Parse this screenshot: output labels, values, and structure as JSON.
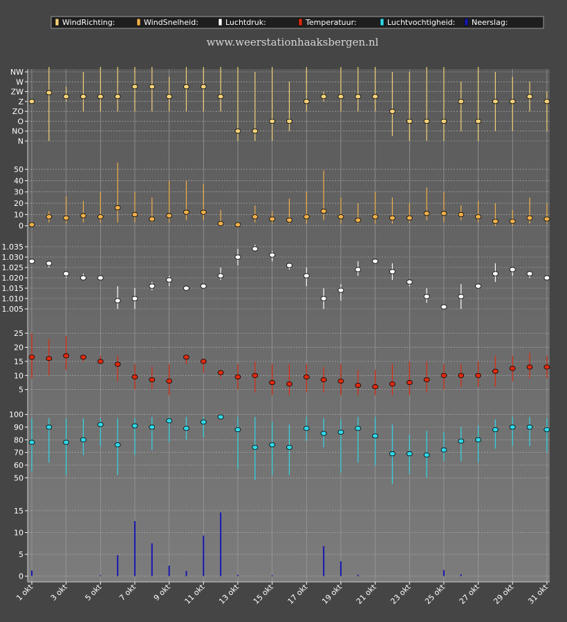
{
  "site_title": "www.weerstationhaaksbergen.nl",
  "colors": {
    "page_bg": "#454545",
    "plot_bg_top": "#5a5a5a",
    "plot_bg_bottom": "#7a7a7a",
    "grid": "#a8a8a8",
    "axis_text": "#ffffff"
  },
  "legend": [
    {
      "label": "WindRichting:",
      "color": "#f5d27a"
    },
    {
      "label": "WindSnelheid:",
      "color": "#f0b04a"
    },
    {
      "label": "Luchtdruk:",
      "color": "#ffffff"
    },
    {
      "label": "Temperatuur:",
      "color": "#e02a10"
    },
    {
      "label": "Luchtvochtigheid:",
      "color": "#30d8e8"
    },
    {
      "label": "Neerslag:",
      "color": "#1818b0"
    }
  ],
  "chart_data": [
    {
      "name": "WindRichting",
      "type": "scatter",
      "color": "#f5d27a",
      "x": [
        "1 okt",
        "2 okt",
        "3 okt",
        "4 okt",
        "5 okt",
        "6 okt",
        "7 okt",
        "8 okt",
        "9 okt",
        "10 okt",
        "11 okt",
        "12 okt",
        "13 okt",
        "14 okt",
        "15 okt",
        "16 okt",
        "17 okt",
        "18 okt",
        "19 okt",
        "20 okt",
        "21 okt",
        "22 okt",
        "23 okt",
        "24 okt",
        "25 okt",
        "26 okt",
        "27 okt",
        "28 okt",
        "29 okt",
        "30 okt",
        "31 okt"
      ],
      "y_ticks": [
        "N",
        "NO",
        "O",
        "ZO",
        "Z",
        "ZW",
        "W",
        "NW"
      ],
      "ylim": [
        0,
        7
      ],
      "values": [
        4.0,
        4.9,
        4.5,
        4.5,
        4.5,
        4.5,
        5.5,
        5.5,
        4.5,
        5.5,
        5.5,
        4.5,
        1.0,
        1.0,
        2.0,
        2.0,
        4.0,
        4.5,
        4.5,
        4.5,
        4.5,
        3.0,
        2.0,
        2.0,
        2.0,
        4.0,
        2.0,
        4.0,
        4.0,
        4.5,
        4.0
      ],
      "min": [
        4.0,
        0.0,
        4.0,
        3.0,
        3.0,
        3.0,
        3.0,
        3.0,
        3.0,
        3.0,
        3.0,
        3.0,
        0.0,
        0.0,
        0.0,
        1.0,
        3.0,
        4.0,
        3.0,
        3.0,
        3.0,
        0.5,
        0.0,
        0.0,
        0.0,
        1.0,
        0.0,
        1.0,
        1.0,
        3.0,
        1.0
      ],
      "max": [
        4.0,
        7.5,
        5.5,
        7.0,
        7.5,
        7.5,
        7.5,
        7.5,
        6.5,
        7.5,
        7.5,
        7.5,
        7.5,
        7.0,
        7.5,
        6.0,
        7.5,
        5.0,
        7.5,
        7.5,
        7.5,
        7.0,
        7.0,
        7.5,
        7.5,
        6.0,
        7.5,
        7.0,
        6.5,
        6.0,
        5.0
      ]
    },
    {
      "name": "WindSnelheid",
      "type": "scatter",
      "color": "#f0b04a",
      "x": [
        "1 okt",
        "2 okt",
        "3 okt",
        "4 okt",
        "5 okt",
        "6 okt",
        "7 okt",
        "8 okt",
        "9 okt",
        "10 okt",
        "11 okt",
        "12 okt",
        "13 okt",
        "14 okt",
        "15 okt",
        "16 okt",
        "17 okt",
        "18 okt",
        "19 okt",
        "20 okt",
        "21 okt",
        "22 okt",
        "23 okt",
        "24 okt",
        "25 okt",
        "26 okt",
        "27 okt",
        "28 okt",
        "29 okt",
        "30 okt",
        "31 okt"
      ],
      "y_ticks": [
        0,
        10,
        20,
        30,
        40,
        50
      ],
      "ylim": [
        -2,
        58
      ],
      "values": [
        1,
        8,
        7,
        9,
        8,
        16,
        10,
        6,
        9,
        12,
        12,
        2,
        1,
        8,
        6,
        5,
        8,
        13,
        8,
        5,
        8,
        7,
        7,
        11,
        11,
        10,
        8,
        4,
        4,
        7,
        6
      ],
      "min": [
        0,
        3,
        2,
        3,
        3,
        3,
        3,
        3,
        3,
        5,
        5,
        0,
        0,
        3,
        2,
        2,
        2,
        5,
        2,
        2,
        2,
        2,
        3,
        5,
        3,
        5,
        3,
        0,
        0,
        2,
        2
      ],
      "max": [
        2,
        13,
        26,
        22,
        30,
        56,
        30,
        25,
        40,
        40,
        37,
        14,
        3,
        18,
        13,
        24,
        30,
        49,
        25,
        20,
        30,
        25,
        20,
        34,
        30,
        18,
        22,
        20,
        14,
        25,
        20
      ]
    },
    {
      "name": "Luchtdruk",
      "type": "scatter",
      "color": "#ffffff",
      "x": [
        "1 okt",
        "2 okt",
        "3 okt",
        "4 okt",
        "5 okt",
        "6 okt",
        "7 okt",
        "8 okt",
        "9 okt",
        "10 okt",
        "11 okt",
        "12 okt",
        "13 okt",
        "14 okt",
        "15 okt",
        "16 okt",
        "17 okt",
        "18 okt",
        "19 okt",
        "20 okt",
        "21 okt",
        "22 okt",
        "23 okt",
        "24 okt",
        "25 okt",
        "26 okt",
        "27 okt",
        "28 okt",
        "29 okt",
        "30 okt",
        "31 okt"
      ],
      "y_ticks": [
        1.005,
        1.01,
        1.015,
        1.02,
        1.025,
        1.03,
        1.035
      ],
      "ylim": [
        1.0,
        1.04
      ],
      "values": [
        1.028,
        1.027,
        1.022,
        1.02,
        1.02,
        1.009,
        1.01,
        1.016,
        1.019,
        1.015,
        1.016,
        1.021,
        1.03,
        1.034,
        1.031,
        1.026,
        1.021,
        1.01,
        1.014,
        1.024,
        1.028,
        1.023,
        1.018,
        1.011,
        1.006,
        1.011,
        1.016,
        1.022,
        1.024,
        1.022,
        1.02
      ],
      "min": [
        1.027,
        1.025,
        1.02,
        1.019,
        1.019,
        1.005,
        1.005,
        1.014,
        1.016,
        1.014,
        1.015,
        1.019,
        1.026,
        1.033,
        1.028,
        1.024,
        1.016,
        1.005,
        1.009,
        1.021,
        1.027,
        1.019,
        1.016,
        1.008,
        1.005,
        1.005,
        1.015,
        1.018,
        1.021,
        1.02,
        1.019
      ],
      "max": [
        1.029,
        1.028,
        1.023,
        1.022,
        1.021,
        1.016,
        1.015,
        1.018,
        1.021,
        1.016,
        1.017,
        1.025,
        1.034,
        1.036,
        1.033,
        1.027,
        1.025,
        1.015,
        1.017,
        1.028,
        1.029,
        1.027,
        1.019,
        1.015,
        1.007,
        1.017,
        1.017,
        1.027,
        1.025,
        1.023,
        1.021
      ]
    },
    {
      "name": "Temperatuur",
      "type": "scatter",
      "color": "#e02a10",
      "x": [
        "1 okt",
        "2 okt",
        "3 okt",
        "4 okt",
        "5 okt",
        "6 okt",
        "7 okt",
        "8 okt",
        "9 okt",
        "10 okt",
        "11 okt",
        "12 okt",
        "13 okt",
        "14 okt",
        "15 okt",
        "16 okt",
        "17 okt",
        "18 okt",
        "19 okt",
        "20 okt",
        "21 okt",
        "22 okt",
        "23 okt",
        "24 okt",
        "25 okt",
        "26 okt",
        "27 okt",
        "28 okt",
        "29 okt",
        "30 okt",
        "31 okt"
      ],
      "y_ticks": [
        5,
        10,
        15,
        20,
        25
      ],
      "ylim": [
        1,
        27
      ],
      "values": [
        16.5,
        16,
        17,
        16.5,
        15,
        14,
        9.5,
        8.5,
        8,
        16.5,
        15,
        11,
        9.5,
        10,
        7.5,
        7,
        9.5,
        8.5,
        8,
        6.5,
        6,
        7,
        7.5,
        8.5,
        10,
        10,
        10,
        11.5,
        12.5,
        13,
        13
      ],
      "min": [
        9,
        10,
        12,
        15,
        14,
        8,
        5,
        5,
        3,
        14,
        11,
        9,
        5,
        4,
        3,
        3,
        4,
        4,
        3,
        3,
        3,
        3,
        3,
        4,
        5,
        6,
        6,
        6,
        8,
        9,
        9
      ],
      "max": [
        25,
        23,
        24,
        17,
        17,
        17,
        14,
        13,
        14,
        17,
        16,
        12,
        14,
        15,
        14,
        14,
        14,
        13,
        14,
        12,
        12,
        14,
        15,
        15,
        14,
        14,
        15,
        17,
        17,
        18,
        17
      ]
    },
    {
      "name": "Luchtvochtigheid",
      "type": "scatter",
      "color": "#30d8e8",
      "x": [
        "1 okt",
        "2 okt",
        "3 okt",
        "4 okt",
        "5 okt",
        "6 okt",
        "7 okt",
        "8 okt",
        "9 okt",
        "10 okt",
        "11 okt",
        "12 okt",
        "13 okt",
        "14 okt",
        "15 okt",
        "16 okt",
        "17 okt",
        "18 okt",
        "19 okt",
        "20 okt",
        "21 okt",
        "22 okt",
        "23 okt",
        "24 okt",
        "25 okt",
        "26 okt",
        "27 okt",
        "28 okt",
        "29 okt",
        "30 okt",
        "31 okt"
      ],
      "y_ticks": [
        50,
        60,
        70,
        80,
        90,
        100
      ],
      "ylim": [
        42,
        102
      ],
      "values": [
        78,
        90,
        78,
        80,
        92,
        76,
        91,
        90,
        95,
        89,
        94,
        98,
        88,
        74,
        76,
        74,
        89,
        85,
        86,
        89,
        83,
        69,
        69,
        68,
        72,
        79,
        80,
        88,
        90,
        90,
        88
      ],
      "min": [
        55,
        62,
        52,
        68,
        75,
        52,
        68,
        72,
        78,
        80,
        82,
        96,
        57,
        48,
        52,
        52,
        79,
        74,
        54,
        62,
        60,
        45,
        53,
        50,
        63,
        63,
        62,
        73,
        75,
        75,
        70
      ],
      "max": [
        97,
        97,
        97,
        97,
        97,
        97,
        97,
        98,
        98,
        98,
        98,
        99,
        98,
        98,
        94,
        92,
        98,
        97,
        96,
        98,
        98,
        92,
        84,
        87,
        86,
        90,
        91,
        96,
        98,
        98,
        97
      ]
    },
    {
      "name": "Neerslag",
      "type": "bar",
      "color": "#1818b0",
      "x": [
        "1 okt",
        "2 okt",
        "3 okt",
        "4 okt",
        "5 okt",
        "6 okt",
        "7 okt",
        "8 okt",
        "9 okt",
        "10 okt",
        "11 okt",
        "12 okt",
        "13 okt",
        "14 okt",
        "15 okt",
        "16 okt",
        "17 okt",
        "18 okt",
        "19 okt",
        "20 okt",
        "21 okt",
        "22 okt",
        "23 okt",
        "24 okt",
        "25 okt",
        "26 okt",
        "27 okt",
        "28 okt",
        "29 okt",
        "30 okt",
        "31 okt"
      ],
      "y_ticks": [
        0,
        5,
        10,
        15
      ],
      "ylim": [
        -1,
        18
      ],
      "values": [
        1.3,
        0,
        0,
        0,
        0.2,
        4.8,
        12.6,
        7.5,
        2.4,
        1.2,
        9.3,
        14.6,
        0.3,
        0,
        0.2,
        0,
        0,
        6.9,
        3.4,
        0.3,
        0,
        0,
        0,
        0,
        1.4,
        0.4,
        0,
        0,
        0,
        0,
        0
      ]
    }
  ],
  "x_axis": {
    "tick_labels": [
      "1 okt",
      "3 okt",
      "5 okt",
      "7 okt",
      "9 okt",
      "11 okt",
      "13 okt",
      "15 okt",
      "17 okt",
      "19 okt",
      "21 okt",
      "23 okt",
      "25 okt",
      "27 okt",
      "29 okt",
      "31 okt"
    ]
  }
}
